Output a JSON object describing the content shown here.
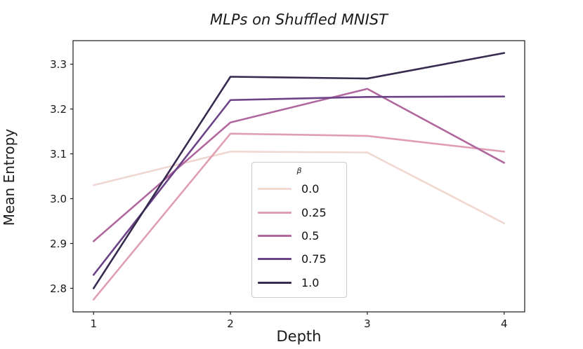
{
  "figure": {
    "title": "MLPs on Shuffled MNIST",
    "xlabel": "Depth",
    "ylabel": "Mean Entropy"
  },
  "legend": {
    "title": "β",
    "entries": [
      {
        "label": "0.0",
        "color": "#f0d8d1"
      },
      {
        "label": "0.25",
        "color": "#df9fb1"
      },
      {
        "label": "0.5",
        "color": "#b0689e"
      },
      {
        "label": "0.75",
        "color": "#6d4387"
      },
      {
        "label": "1.0",
        "color": "#372b50"
      }
    ]
  },
  "chart_data": {
    "type": "line",
    "title": "MLPs on Shuffled MNIST",
    "xlabel": "Depth",
    "ylabel": "Mean Entropy",
    "x": [
      1,
      2,
      3,
      4
    ],
    "xtick_labels": [
      "1",
      "2",
      "3",
      "4"
    ],
    "xticks": [
      1,
      2,
      3,
      4
    ],
    "yticks": [
      2.8,
      2.9,
      3.0,
      3.1,
      3.2,
      3.3
    ],
    "ytick_labels": [
      "2.8",
      "2.9",
      "3.0",
      "3.1",
      "3.2",
      "3.3"
    ],
    "xlim": [
      0.85,
      4.15
    ],
    "ylim": [
      2.7475,
      3.3525
    ],
    "grid": false,
    "legend_title": "β",
    "legend_position": "center",
    "series": [
      {
        "name": "0.0",
        "color": "#f0d8d1",
        "values": [
          3.03,
          3.105,
          3.103,
          2.945
        ]
      },
      {
        "name": "0.25",
        "color": "#df9fb1",
        "values": [
          2.775,
          3.145,
          3.14,
          3.105
        ]
      },
      {
        "name": "0.5",
        "color": "#b0689e",
        "values": [
          2.905,
          3.17,
          3.245,
          3.08
        ]
      },
      {
        "name": "0.75",
        "color": "#6d4387",
        "values": [
          2.83,
          3.22,
          3.227,
          3.228
        ]
      },
      {
        "name": "1.0",
        "color": "#372b50",
        "values": [
          2.8,
          3.272,
          3.268,
          3.325
        ]
      }
    ],
    "axis_color": "#1a1a1a",
    "line_width": 2.6
  }
}
